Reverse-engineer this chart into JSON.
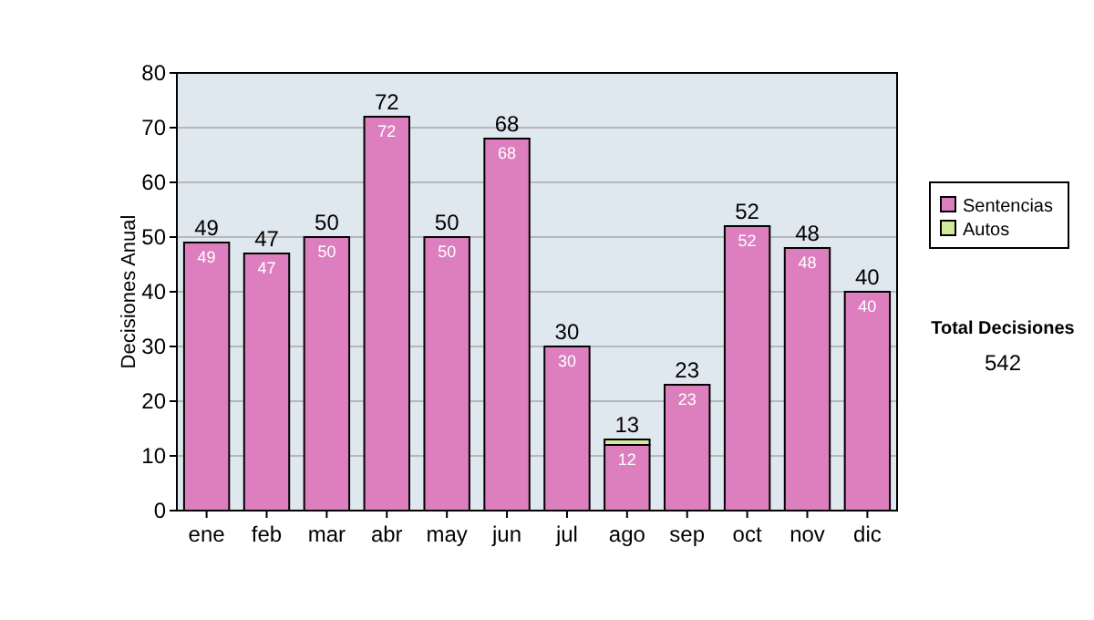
{
  "chart_data": {
    "type": "bar",
    "stacked": true,
    "ylabel": "Decisiones Anual",
    "categories": [
      "ene",
      "feb",
      "mar",
      "abr",
      "may",
      "jun",
      "jul",
      "ago",
      "sep",
      "oct",
      "nov",
      "dic"
    ],
    "series": [
      {
        "name": "Sentencias",
        "color": "#dd7fbf",
        "values": [
          49,
          47,
          50,
          72,
          50,
          68,
          30,
          12,
          23,
          52,
          48,
          40
        ],
        "value_labels": [
          "49",
          "47",
          "50",
          "72",
          "50",
          "68",
          "30",
          "12",
          "23",
          "52",
          "48",
          "40"
        ]
      },
      {
        "name": "Autos",
        "color": "#d4e89c",
        "values": [
          null,
          null,
          null,
          null,
          null,
          null,
          null,
          1,
          null,
          null,
          null,
          null
        ]
      }
    ],
    "totals": [
      "49",
      "47",
      "50",
      "72",
      "50",
      "68",
      "30",
      "13",
      "23",
      "52",
      "48",
      "40"
    ],
    "ylim": [
      0,
      80
    ],
    "yticks": [
      0,
      10,
      20,
      30,
      40,
      50,
      60,
      70,
      80
    ],
    "grid": "y",
    "legend": "right",
    "annotations": [
      "Total Decisiones",
      "542"
    ]
  }
}
